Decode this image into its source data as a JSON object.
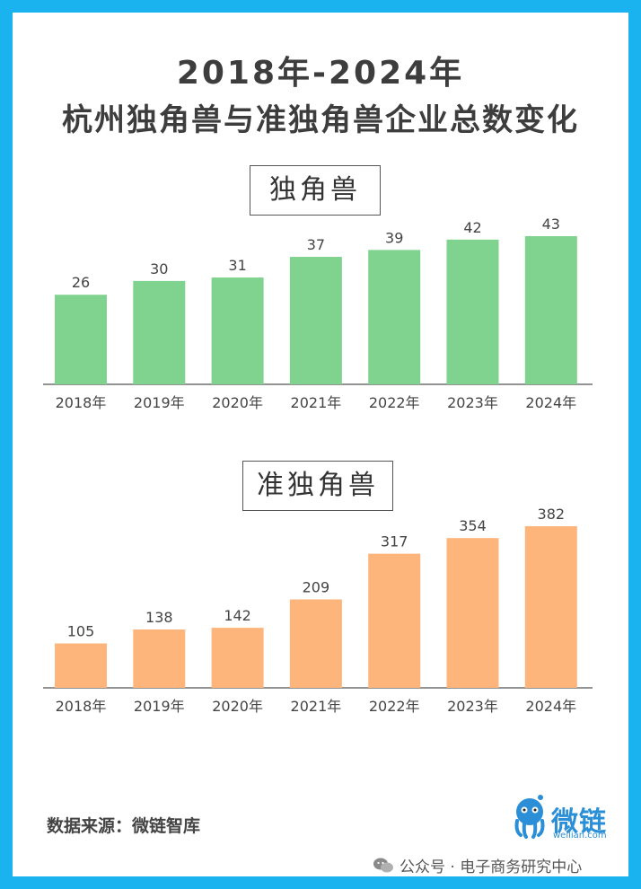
{
  "title": {
    "line1": "2018年-2024年",
    "line2": "杭州独角兽与准独角兽企业总数变化"
  },
  "colors": {
    "frame": "#1ab3f0",
    "unicorn_bar": "#7fd38e",
    "quasi_unicorn_bar": "#fdb57c",
    "brand": "#2a8fd6"
  },
  "chart_data": [
    {
      "type": "bar",
      "title": "独角兽",
      "categories": [
        "2018年",
        "2019年",
        "2020年",
        "2021年",
        "2022年",
        "2023年",
        "2024年"
      ],
      "values": [
        26,
        30,
        31,
        37,
        39,
        42,
        43
      ],
      "ylim": [
        0,
        45
      ],
      "grid": false,
      "legend": "none"
    },
    {
      "type": "bar",
      "title": "准独角兽",
      "categories": [
        "2018年",
        "2019年",
        "2020年",
        "2021年",
        "2022年",
        "2023年",
        "2024年"
      ],
      "values": [
        105,
        138,
        142,
        209,
        317,
        354,
        382
      ],
      "ylim": [
        0,
        400
      ],
      "grid": false,
      "legend": "none"
    }
  ],
  "footer": {
    "source": "数据来源：微链智库",
    "brand_name": "微链",
    "brand_domain": "weilian.com",
    "wechat_account": "公众号 · 电子商务研究中心",
    "wechat_icon": "wechat-icon",
    "mascot_icon": "octopus-mascot-icon"
  }
}
